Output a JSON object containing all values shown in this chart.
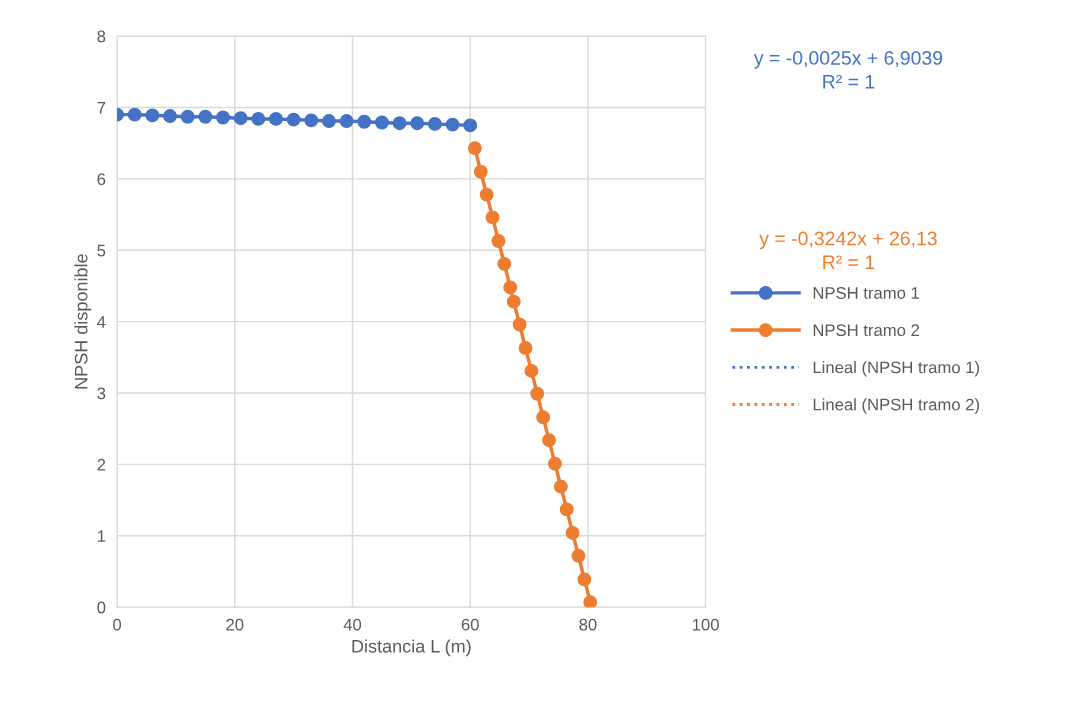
{
  "chart_data": {
    "type": "line",
    "xlabel": "Distancia L (m)",
    "ylabel": "NPSH disponible",
    "xlim": [
      0,
      100
    ],
    "xticks": [
      0,
      20,
      40,
      60,
      80,
      100
    ],
    "ylim": [
      0,
      8
    ],
    "yticks": [
      0,
      1,
      2,
      3,
      4,
      5,
      6,
      7,
      8
    ],
    "grid": true,
    "legend": "right",
    "series": [
      {
        "name": "NPSH tramo 1",
        "color": "#4472c4",
        "marker": "circle",
        "line_style": "solid",
        "x": [
          0,
          3,
          6,
          9,
          12,
          15,
          18,
          21,
          24,
          27,
          30,
          33,
          36,
          39,
          42,
          45,
          48,
          51,
          54,
          57,
          60
        ],
        "values": [
          6.9,
          6.9,
          6.89,
          6.88,
          6.87,
          6.87,
          6.86,
          6.85,
          6.84,
          6.84,
          6.83,
          6.82,
          6.81,
          6.81,
          6.8,
          6.79,
          6.78,
          6.78,
          6.77,
          6.76,
          6.75
        ]
      },
      {
        "name": "NPSH tramo 2",
        "color": "#ed7d31",
        "marker": "circle",
        "line_style": "solid",
        "x": [
          60.8,
          61.8,
          62.8,
          63.8,
          64.8,
          65.8,
          66.8,
          67.4,
          68.4,
          69.4,
          70.4,
          71.4,
          72.4,
          73.4,
          74.4,
          75.4,
          76.4,
          77.4,
          78.4,
          79.4,
          80.4
        ],
        "values": [
          6.43,
          6.1,
          5.78,
          5.46,
          5.13,
          4.81,
          4.48,
          4.28,
          3.96,
          3.63,
          3.31,
          2.99,
          2.66,
          2.34,
          2.01,
          1.69,
          1.37,
          1.04,
          0.72,
          0.39,
          0.07
        ]
      },
      {
        "name": "Lineal (NPSH tramo 1)",
        "color": "#4472c4",
        "marker": "none",
        "line_style": "dotted"
      },
      {
        "name": "Lineal (NPSH tramo 2)",
        "color": "#ed7d31",
        "marker": "none",
        "line_style": "dotted"
      }
    ],
    "annotations": [
      "y = -0,0025x + 6,9039\nR² = 1",
      "y = -0,3242x + 26,13\nR² = 1"
    ]
  }
}
